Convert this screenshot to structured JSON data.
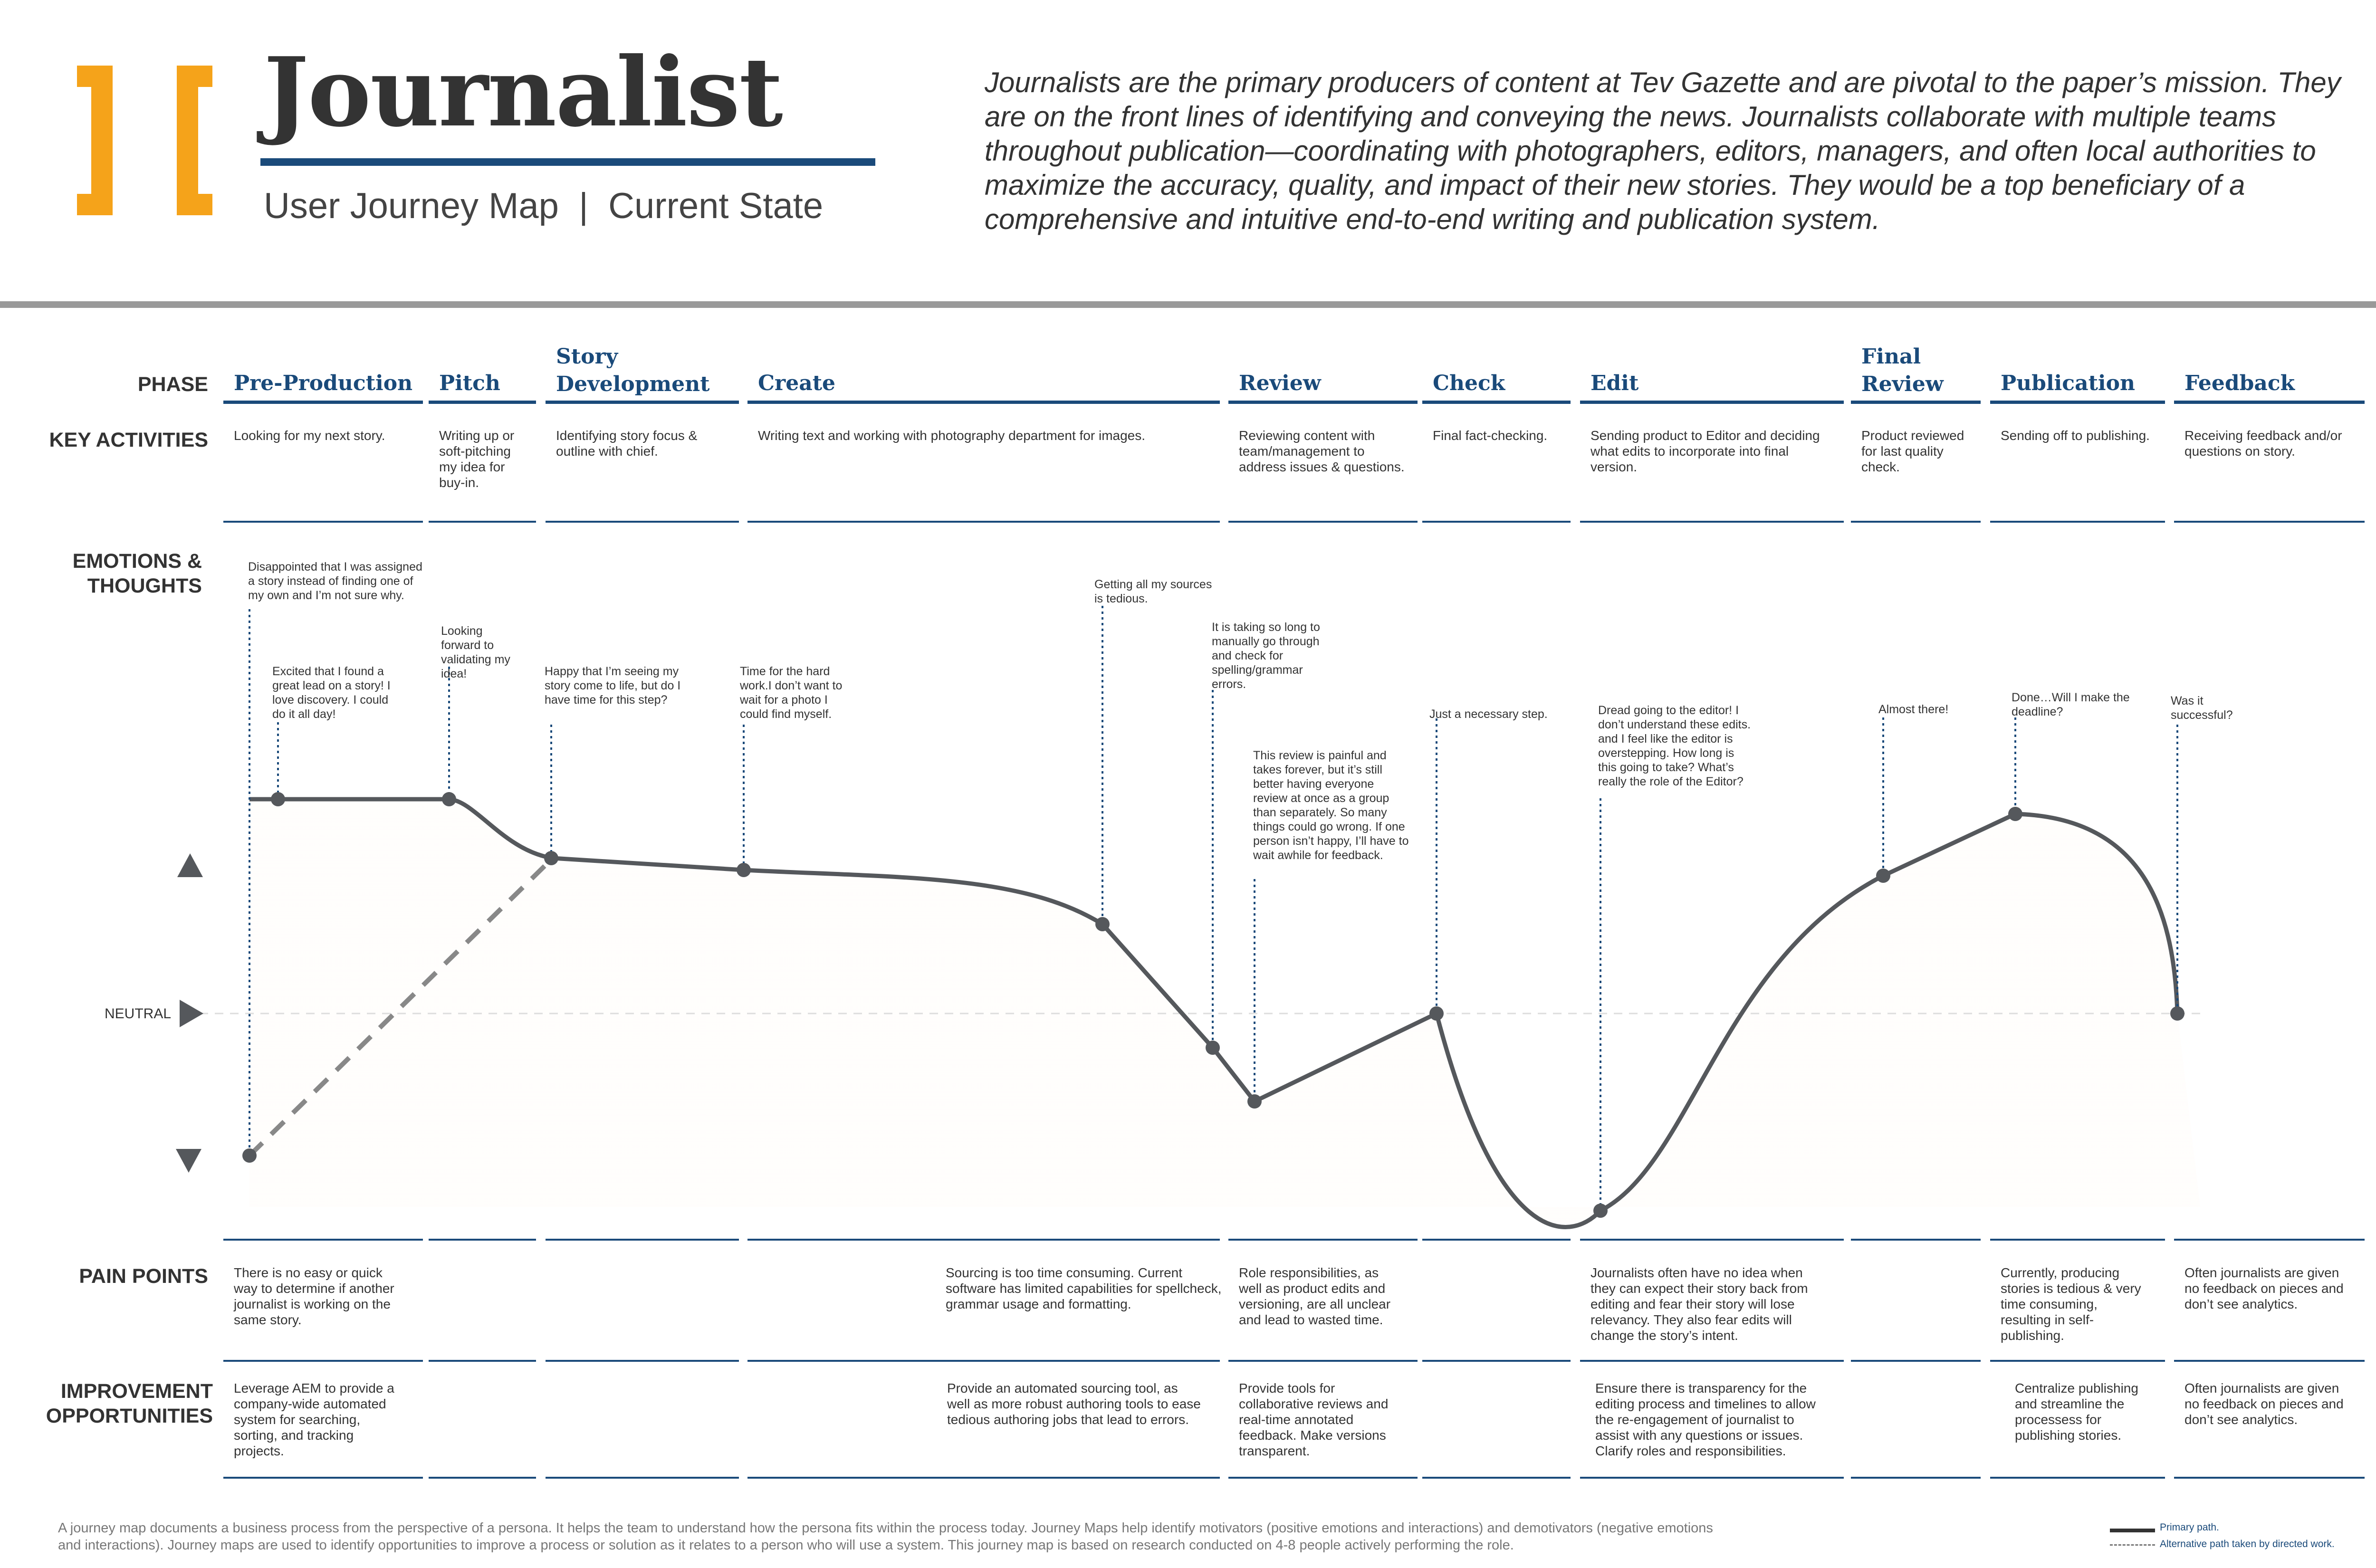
{
  "header": {
    "title": "Journalist",
    "subtitle": "User Journey Map  |  Current State",
    "description": "Journalists are the primary producers of content at Tev Gazette and are pivotal to the paper’s mission.  They are on the front lines of identifying and conveying the news.  Journalists collaborate with multiple teams throughout publication—coordinating with photographers, editors, managers, and often local authorities to maximize the accuracy, quality, and impact of their new stories.  They would be a top beneficiary of a comprehensive and intuitive end-to-end writing and publication system."
  },
  "row_labels": {
    "phase": "PHASE",
    "activities": "KEY ACTIVITIES",
    "emotions": "EMOTIONS &\nTHOUGHTS",
    "neutral": "NEUTRAL",
    "pain": "PAIN POINTS",
    "improve": "IMPROVEMENT\nOPPORTUNITIES"
  },
  "phases": [
    {
      "name": "Pre-Production",
      "activity": "Looking for my next story.",
      "pain": "There is no easy or quick way to determine if another journalist is working on the same story.",
      "improve": "Leverage AEM to provide a company-wide automated system for searching, sorting, and tracking projects."
    },
    {
      "name": "Pitch",
      "activity": "Writing up or soft-pitching my idea for buy-in.",
      "pain": "",
      "improve": ""
    },
    {
      "name": "Story Development",
      "activity": "Identifying story focus & outline with chief.",
      "pain": "",
      "improve": ""
    },
    {
      "name": "Create",
      "activity": "Writing text and working with photography department for images.",
      "pain": "Sourcing is too time consuming. Current software has limited capabilities for spellcheck, grammar usage and formatting.",
      "improve": "Provide an automated sourcing tool, as well as more robust authoring tools to ease tedious authoring jobs that lead to errors."
    },
    {
      "name": "Review",
      "activity": "Reviewing content with team/management to address issues & questions.",
      "pain": "Role responsibilities, as well as product edits and versioning, are all unclear and lead to wasted time.",
      "improve": "Provide tools for collaborative reviews and real-time annotated feedback. Make versions transparent."
    },
    {
      "name": "Check",
      "activity": "Final fact-checking.",
      "pain": "",
      "improve": ""
    },
    {
      "name": "Edit",
      "activity": "Sending product to Editor and deciding what edits to incorporate into final version.",
      "pain": "Journalists often have no idea when they can expect their story back from editing and fear their story will lose relevancy.  They also fear edits will change the story’s intent.",
      "improve": "Ensure there is transparency for the editing process and timelines to allow the re-engagement of journalist to assist with any questions or issues. Clarify roles and responsibilities."
    },
    {
      "name": "Final Review",
      "activity": "Product reviewed for last quality check.",
      "pain": "",
      "improve": ""
    },
    {
      "name": "Publication",
      "activity": "Sending off to publishing.",
      "pain": "Currently, producing stories is tedious & very time consuming, resulting in self-publishing.",
      "improve": "Centralize publishing and streamline the processess for publishing stories."
    },
    {
      "name": "Feedback",
      "activity": "Receiving feedback and/or questions on story.",
      "pain": "Often journalists are given no feedback on pieces and don’t see analytics.",
      "improve": "Often journalists are given no feedback on pieces and don’t see analytics."
    }
  ],
  "thoughts": [
    {
      "text": "Disappointed that I was assigned a story instead of finding one of my own and I’m not sure why."
    },
    {
      "text": "Excited that I found a great lead on a story! I love discovery. I could do it all day!"
    },
    {
      "text": "Looking forward to validating my idea!"
    },
    {
      "text": "Happy that I’m seeing my story come to life, but do I have time for this step?"
    },
    {
      "text": "Time for the hard work.I don’t want to wait for a photo I could find myself."
    },
    {
      "text": "Getting all my sources is tedious."
    },
    {
      "text": "It is taking so long to manually go through and check for spelling/grammar errors."
    },
    {
      "text": "This review is painful and takes forever, but it’s still better having everyone review at once as a group than separately. So many things could go wrong. If one person isn’t happy, I’ll have to wait awhile for feedback."
    },
    {
      "text": "Just a necessary step."
    },
    {
      "text": "Dread going to the editor! I don’t understand these edits. and I feel like the editor is overstepping. How long is this going to take? What’s really the role of the Editor?"
    },
    {
      "text": "Almost there!"
    },
    {
      "text": "Done…Will I make the deadline?"
    },
    {
      "text": "Was it successful?"
    }
  ],
  "footer": {
    "note": "A journey map documents a business process from the perspective of a persona.  It helps the team to understand how the persona fits within the process today.  Journey Maps help identify motivators (positive emotions and interactions) and demotivators (negative emotions and interactions).  Journey maps are used to identify opportunities to improve a process or solution as it relates to a person who will use a system.  This journey map is based on research conducted on 4-8 people actively performing the role.",
    "legend_primary": "Primary path.",
    "legend_alt": "Alternative path taken by directed work."
  },
  "colors": {
    "brand_navy": "#1a4a7a",
    "accent_orange": "#f5a31a",
    "curve": "#55585c",
    "fill": "#f6c99a"
  }
}
